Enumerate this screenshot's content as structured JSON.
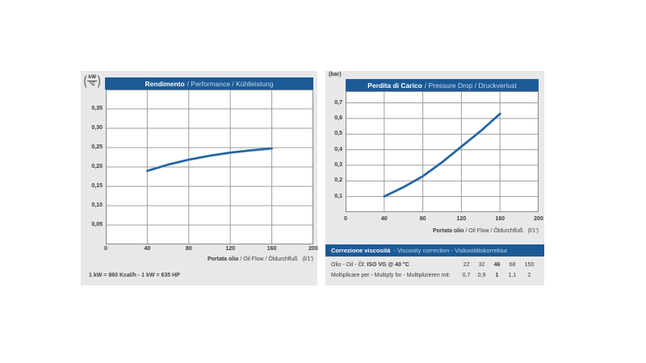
{
  "colors": {
    "navy": "#1b5a96",
    "panel": "#e8e8e9",
    "title_secondary": "#c9d8ea",
    "grid": "#9c9c9c",
    "plot_border": "#8a8a8a",
    "curve": "#1b5a96",
    "curve_light": "#6e9fce"
  },
  "left_chart": {
    "paren_open": "(",
    "paren_close": ")",
    "y_unit_top": "kW",
    "y_unit_bottom": "°C",
    "title_primary": "Rendimento",
    "title_secondary": "/ Performance / Kühlleistung",
    "x_label_primary": "Portata olio",
    "x_label_secondary": " / Oil Flow / Öldurchfluß",
    "x_label_unit": "(l/1')",
    "footnote": "1 kW = 860 Kcal/h - 1 kW = 635 HP"
  },
  "right_chart": {
    "y_unit": "(bar)",
    "title_primary": "Perdita di Carico",
    "title_secondary": "/ Pressure Drop / Druckverlust",
    "x_label_primary": "Portata olio",
    "x_label_secondary": " / Oil Flow / Öldurchfluß",
    "x_label_unit": "(l/1')"
  },
  "viscosity": {
    "header_primary": "Correzione viscosità",
    "header_secondary": "- Viscosity correction - Viskositätskorrektur",
    "row1_label_prefix": "Olio - Oil - Öl:",
    "row1_label_bold": "ISO VG @ 40 °C",
    "row1_values": [
      "22",
      "32",
      "46",
      "68",
      "150"
    ],
    "row2_label": "Moltiplicare per - Multiply for - Multiplizieren mit:",
    "row2_values": [
      "0,7",
      "0,9",
      "1",
      "1,1",
      "2"
    ]
  },
  "chart_data": [
    {
      "type": "line",
      "title": "Rendimento / Performance / Kühlleistung",
      "xlabel": "Portata olio / Oil Flow / Öldurchfluß (l/1')",
      "ylabel": "kW/°C",
      "xlim": [
        0,
        200
      ],
      "ylim": [
        0,
        0.4
      ],
      "x_ticks": [
        0,
        40,
        80,
        120,
        160,
        200
      ],
      "y_ticks": [
        0.05,
        0.1,
        0.15,
        0.2,
        0.25,
        0.3,
        0.35
      ],
      "y_tick_labels": [
        "0,05",
        "0,10",
        "0,15",
        "0,20",
        "0,25",
        "0,30",
        "0,35"
      ],
      "grid": true,
      "legend": false,
      "series": [
        {
          "name": "cooling-performance",
          "x": [
            40,
            60,
            80,
            100,
            120,
            140,
            160
          ],
          "y": [
            0.19,
            0.206,
            0.219,
            0.229,
            0.237,
            0.243,
            0.248
          ]
        }
      ]
    },
    {
      "type": "line",
      "title": "Perdita di Carico / Pressure Drop / Druckverlust",
      "xlabel": "Portata olio / Oil Flow / Öldurchfluß (l/1')",
      "ylabel": "bar",
      "xlim": [
        0,
        200
      ],
      "ylim": [
        0,
        0.8
      ],
      "x_ticks": [
        0,
        40,
        80,
        120,
        160,
        200
      ],
      "y_ticks": [
        0.1,
        0.2,
        0.3,
        0.4,
        0.5,
        0.6,
        0.7
      ],
      "y_tick_labels": [
        "0,1",
        "0,2",
        "0,3",
        "0,4",
        "0,5",
        "0,6",
        "0,7"
      ],
      "grid": true,
      "legend": false,
      "series": [
        {
          "name": "pressure-drop",
          "x": [
            40,
            60,
            80,
            100,
            120,
            140,
            160
          ],
          "y": [
            0.1,
            0.16,
            0.23,
            0.32,
            0.42,
            0.52,
            0.63
          ]
        }
      ]
    }
  ]
}
